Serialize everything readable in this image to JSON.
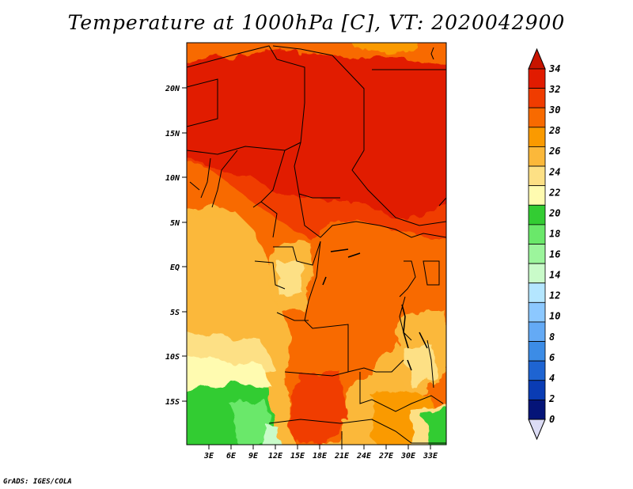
{
  "title": "Temperature at 1000hPa [C], VT: 2020042900",
  "credit": "GrADS: IGES/COLA",
  "map": {
    "lon_range": [
      0,
      35
    ],
    "lat_range": [
      -20,
      25
    ],
    "lat_ticks": [
      "20N",
      "15N",
      "10N",
      "5N",
      "EQ",
      "5S",
      "10S",
      "15S"
    ],
    "lat_tick_values": [
      20,
      15,
      10,
      5,
      0,
      -5,
      -10,
      -15
    ],
    "lon_ticks": [
      "3E",
      "6E",
      "9E",
      "12E",
      "15E",
      "18E",
      "21E",
      "24E",
      "27E",
      "30E",
      "33E"
    ],
    "lon_tick_values": [
      3,
      6,
      9,
      12,
      15,
      18,
      21,
      24,
      27,
      30,
      33
    ]
  },
  "colorbar": {
    "labels": [
      "34",
      "32",
      "30",
      "28",
      "26",
      "24",
      "22",
      "20",
      "18",
      "16",
      "14",
      "12",
      "10",
      "8",
      "6",
      "4",
      "2",
      "0"
    ],
    "colors_top_to_bottom": [
      "#e11b00",
      "#f03c00",
      "#f86a00",
      "#fa9a00",
      "#fbb83a",
      "#fde085",
      "#fffbb0",
      "#33cc33",
      "#6ae86a",
      "#9cf59c",
      "#c9fbc9",
      "#b4e6ff",
      "#8cc8ff",
      "#64aaf5",
      "#3c8ce6",
      "#1e64d2",
      "#0a3cb4",
      "#051478"
    ],
    "top_arrow_color": "#c81400",
    "bottom_arrow_color": "#dcdcf5"
  }
}
